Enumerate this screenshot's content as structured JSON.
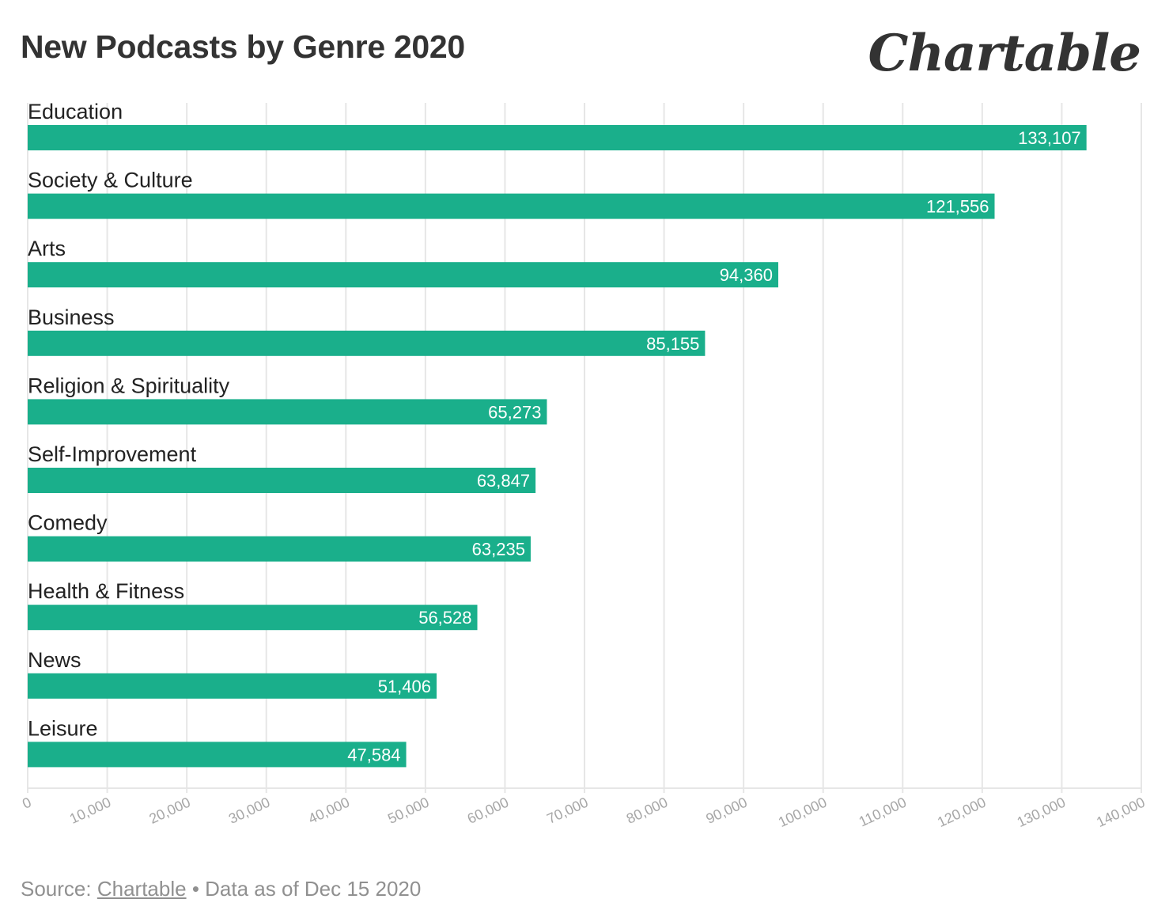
{
  "header": {
    "title": "New Podcasts by Genre 2020",
    "brand": "Chartable"
  },
  "footer": {
    "source_prefix": "Source:",
    "source_link": "Chartable",
    "separator": "•",
    "data_note": "Data as of Dec 15 2020"
  },
  "colors": {
    "bar": "#1aaf8b",
    "grid": "#e6e6e6",
    "tick_label": "#a6a6a6",
    "category_label": "#222222",
    "value_label": "#ffffff"
  },
  "chart_data": {
    "type": "bar",
    "orientation": "horizontal",
    "title": "New Podcasts by Genre 2020",
    "categories": [
      "Education",
      "Society & Culture",
      "Arts",
      "Business",
      "Religion & Spirituality",
      "Self-Improvement",
      "Comedy",
      "Health & Fitness",
      "News",
      "Leisure"
    ],
    "values": [
      133107,
      121556,
      94360,
      85155,
      65273,
      63847,
      63235,
      56528,
      51406,
      47584
    ],
    "value_labels": [
      "133,107",
      "121,556",
      "94,360",
      "85,155",
      "65,273",
      "63,847",
      "63,235",
      "56,528",
      "51,406",
      "47,584"
    ],
    "xlim": [
      0,
      140000
    ],
    "xticks": [
      0,
      10000,
      20000,
      30000,
      40000,
      50000,
      60000,
      70000,
      80000,
      90000,
      100000,
      110000,
      120000,
      130000,
      140000
    ],
    "xtick_labels": [
      "0",
      "10,000",
      "20,000",
      "30,000",
      "40,000",
      "50,000",
      "60,000",
      "70,000",
      "80,000",
      "90,000",
      "100,000",
      "110,000",
      "120,000",
      "130,000",
      "140,000"
    ],
    "grid": true,
    "legend": "none"
  }
}
